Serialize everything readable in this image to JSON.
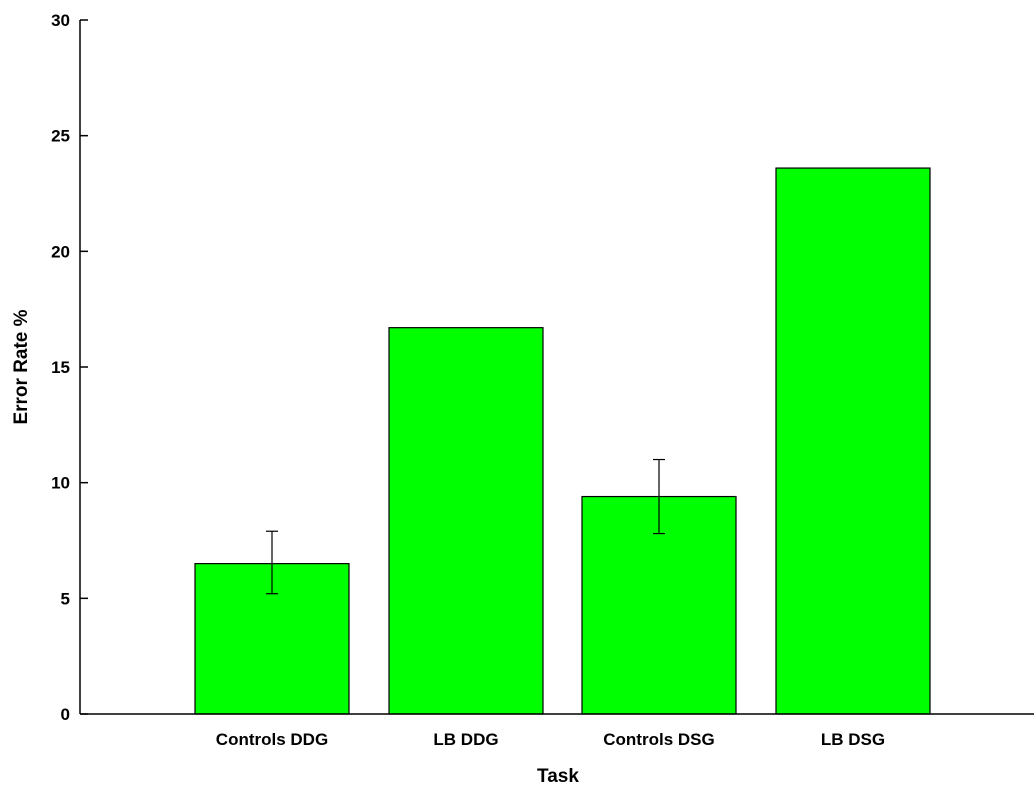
{
  "chart_data": {
    "type": "bar",
    "title": "",
    "xlabel": "Task",
    "ylabel": "Error Rate %",
    "ylim": [
      0,
      30
    ],
    "yticks": [
      "0",
      "5",
      "10",
      "15",
      "20",
      "25",
      "30"
    ],
    "categories": [
      "Controls DDG",
      "LB DDG",
      "Controls DSG",
      "LB DSG"
    ],
    "values": [
      6.5,
      16.7,
      9.4,
      23.6
    ],
    "error_bars": [
      {
        "low": 5.2,
        "high": 7.9
      },
      null,
      {
        "low": 7.8,
        "high": 11.0
      },
      null
    ],
    "bar_color": "#00ff00",
    "grid": false,
    "legend": "none"
  }
}
